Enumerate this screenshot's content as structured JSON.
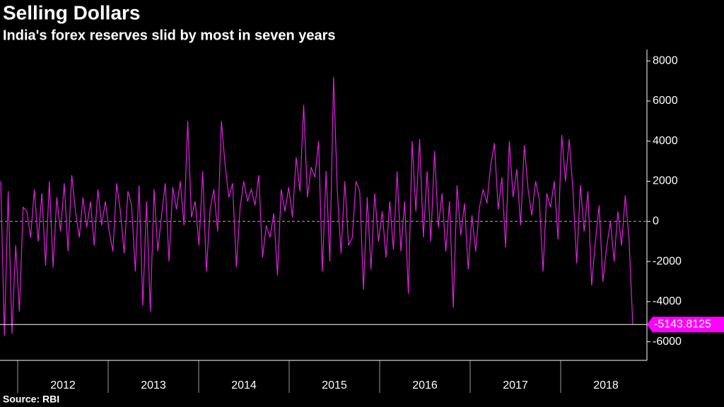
{
  "chart_data": {
    "type": "line",
    "title": "Selling Dollars",
    "subtitle": "India's forex reserves slid by most in seven years",
    "source": "Source: RBI",
    "x_labels": [
      "2012",
      "2013",
      "2014",
      "2015",
      "2016",
      "2017",
      "2018"
    ],
    "color": "#e020e0",
    "values": [
      2000,
      -5700,
      1500,
      -5600,
      -1200,
      -4500,
      700,
      500,
      -800,
      1600,
      -1000,
      1400,
      -2200,
      2000,
      -2300,
      1200,
      -500,
      1900,
      -1500,
      2300,
      500,
      -800,
      1200,
      -300,
      1000,
      -1200,
      1600,
      -200,
      1000,
      -500,
      -1500,
      1900,
      500,
      -1600,
      1500,
      800,
      -2500,
      1800,
      -4200,
      1000,
      -4500,
      1600,
      -1500,
      300,
      1900,
      -2000,
      1700,
      600,
      2000,
      -200,
      5000,
      200,
      1000,
      -1200,
      2500,
      -2500,
      600,
      1600,
      -500,
      5000,
      2800,
      1200,
      1900,
      -2300,
      700,
      2000,
      1000,
      1600,
      800,
      2300,
      -1800,
      -200,
      -800,
      400,
      -2700,
      1600,
      500,
      1700,
      200,
      3200,
      1500,
      5800,
      1200,
      2700,
      2200,
      4000,
      -2500,
      2500,
      -2000,
      7200,
      1500,
      -1600,
      2000,
      -1200,
      -800,
      2000,
      1500,
      -3400,
      1200,
      -2400,
      1400,
      -1000,
      500,
      -1800,
      1000,
      -1400,
      2500,
      -1500,
      1000,
      -3600,
      4000,
      500,
      4100,
      -800,
      2500,
      -1000,
      3500,
      -300,
      1400,
      -1500,
      1000,
      -4300,
      1800,
      -700,
      900,
      -2400,
      300,
      -1500,
      700,
      1600,
      900,
      2800,
      3900,
      600,
      2200,
      -1300,
      4000,
      1200,
      2600,
      -200,
      3800,
      1600,
      300,
      2000,
      1100,
      -2500,
      1400,
      700,
      2000,
      -900,
      4300,
      2000,
      4100,
      1500,
      -2100,
      1800,
      -500,
      1500,
      -3200,
      -1000,
      800,
      -3000,
      -1300,
      0,
      -2000,
      500,
      -1200,
      1300,
      -900,
      -5143.8125
    ],
    "ylim": [
      -7000,
      8500
    ],
    "yticks": [
      -6000,
      -4000,
      -2000,
      0,
      2000,
      4000,
      6000,
      8000
    ]
  }
}
